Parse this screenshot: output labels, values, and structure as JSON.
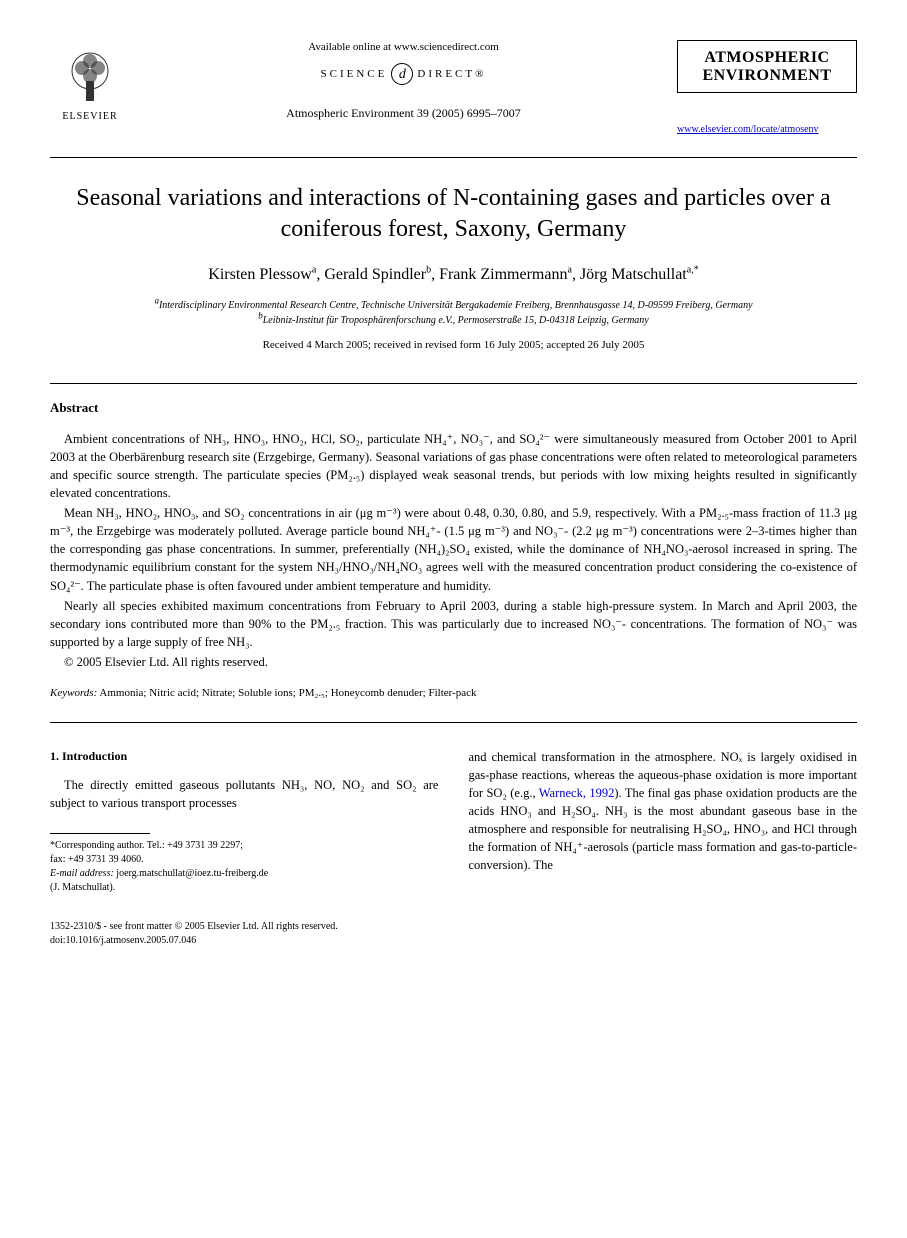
{
  "header": {
    "publisher_name": "ELSEVIER",
    "available_online": "Available online at www.sciencedirect.com",
    "sciencedirect_left": "SCIENCE",
    "sciencedirect_symbol": "d",
    "sciencedirect_right": "DIRECT®",
    "journal_ref": "Atmospheric Environment 39 (2005) 6995–7007",
    "journal_title_line1": "ATMOSPHERIC",
    "journal_title_line2": "ENVIRONMENT",
    "journal_link": "www.elsevier.com/locate/atmosenv"
  },
  "title": "Seasonal variations and interactions of N-containing gases and particles over a coniferous forest, Saxony, Germany",
  "authors_html": "Kirsten Plessow<sup>a</sup>, Gerald Spindler<sup>b</sup>, Frank Zimmermann<sup>a</sup>, Jörg Matschullat<sup>a,*</sup>",
  "affiliations": {
    "a": "Interdisciplinary Environmental Research Centre, Technische Universität Bergakademie Freiberg, Brennhausgasse 14, D-09599 Freiberg, Germany",
    "b": "Leibniz-Institut für Troposphärenforschung e.V., Permoserstraße 15, D-04318 Leipzig, Germany"
  },
  "dates": "Received 4 March 2005; received in revised form 16 July 2005; accepted 26 July 2005",
  "abstract": {
    "heading": "Abstract",
    "p1": "Ambient concentrations of NH₃, HNO₃, HNO₂, HCl, SO₂, particulate NH₄⁺, NO₃⁻, and SO₄²⁻ were simultaneously measured from October 2001 to April 2003 at the Oberbärenburg research site (Erzgebirge, Germany). Seasonal variations of gas phase concentrations were often related to meteorological parameters and specific source strength. The particulate species (PM₂.₅) displayed weak seasonal trends, but periods with low mixing heights resulted in significantly elevated concentrations.",
    "p2": "Mean NH₃, HNO₂, HNO₃, and SO₂ concentrations in air (μg m⁻³) were about 0.48, 0.30, 0.80, and 5.9, respectively. With a PM₂.₅-mass fraction of 11.3 μg m⁻³, the Erzgebirge was moderately polluted. Average particle bound NH₄⁺- (1.5 μg m⁻³) and NO₃⁻- (2.2 μg m⁻³) concentrations were 2–3-times higher than the corresponding gas phase concentrations. In summer, preferentially (NH₄)₂SO₄ existed, while the dominance of NH₄NO₃-aerosol increased in spring. The thermodynamic equilibrium constant for the system NH₃/HNO₃/NH₄NO₃ agrees well with the measured concentration product considering the co-existence of SO₄²⁻. The particulate phase is often favoured under ambient temperature and humidity.",
    "p3": "Nearly all species exhibited maximum concentrations from February to April 2003, during a stable high-pressure system. In March and April 2003, the secondary ions contributed more than 90% to the PM₂.₅ fraction. This was particularly due to increased NO₃⁻- concentrations. The formation of NO₃⁻ was supported by a large supply of free NH₃.",
    "copyright": "© 2005 Elsevier Ltd. All rights reserved."
  },
  "keywords": {
    "label": "Keywords:",
    "text": "Ammonia; Nitric acid; Nitrate; Soluble ions; PM₂.₅; Honeycomb denuder; Filter-pack"
  },
  "introduction": {
    "heading": "1. Introduction",
    "col1": "The directly emitted gaseous pollutants NH₃, NO, NO₂ and SO₂ are subject to various transport processes",
    "col2": "and chemical transformation in the atmosphere. NOₓ is largely oxidised in gas-phase reactions, whereas the aqueous-phase oxidation is more important for SO₂ (e.g., Warneck, 1992). The final gas phase oxidation products are the acids HNO₃ and H₂SO₄. NH₃ is the most abundant gaseous base in the atmosphere and responsible for neutralising H₂SO₄, HNO₃, and HCl through the formation of NH₄⁺-aerosols (particle mass formation and gas-to-particle-conversion). The",
    "ref_text": "Warneck, 1992"
  },
  "footnote": {
    "corresponding": "*Corresponding author. Tel.: +49 3731 39 2297;",
    "fax": "fax: +49 3731 39 4060.",
    "email_label": "E-mail address:",
    "email": "joerg.matschullat@ioez.tu-freiberg.de",
    "author": "(J. Matschullat)."
  },
  "footer": {
    "line1": "1352-2310/$ - see front matter © 2005 Elsevier Ltd. All rights reserved.",
    "line2": "doi:10.1016/j.atmosenv.2005.07.046"
  },
  "colors": {
    "text": "#000000",
    "link": "#0000cc",
    "background": "#ffffff"
  }
}
